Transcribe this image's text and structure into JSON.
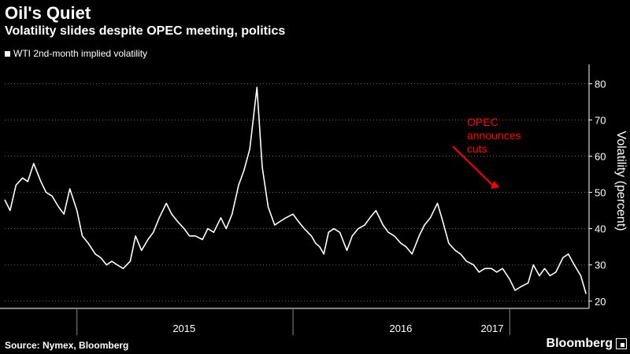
{
  "header": {
    "title": "Oil's Quiet",
    "subtitle": "Volatility slides despite OPEC meeting, politics"
  },
  "legend": {
    "label": "WTI 2nd-month implied volatility"
  },
  "footer": {
    "source": "Source: Nymex, Bloomberg",
    "brand": "Bloomberg"
  },
  "annotation": {
    "lines": [
      "OPEC",
      "announces",
      "cuts"
    ],
    "color": "#ff0000",
    "arrow_to": [
      "2016-11-30",
      51
    ]
  },
  "colors": {
    "background": "#000000",
    "line": "#ffffff",
    "annotation": "#ff0000"
  },
  "chart_data": {
    "type": "line",
    "ylabel": "Volatility (percent)",
    "ylim": [
      18,
      84
    ],
    "yticks": [
      20,
      30,
      40,
      50,
      60,
      70,
      80
    ],
    "xlim": [
      "2014-09-01",
      "2017-05-15"
    ],
    "xticks": [
      {
        "label": "2015",
        "at": "2015-07-01"
      },
      {
        "label": "2016",
        "at": "2016-07-01"
      },
      {
        "label": "2017",
        "at": "2017-07-01"
      }
    ],
    "xboundaries": [
      "2015-01-01",
      "2016-01-01",
      "2017-01-01"
    ],
    "grid": "horizontal-dotted",
    "legend_position": "top-left",
    "series": [
      {
        "name": "WTI 2nd-month implied volatility",
        "x": [
          "2014-09-01",
          "2014-09-10",
          "2014-09-20",
          "2014-10-01",
          "2014-10-10",
          "2014-10-20",
          "2014-11-01",
          "2014-11-10",
          "2014-11-20",
          "2014-12-01",
          "2014-12-10",
          "2014-12-20",
          "2015-01-01",
          "2015-01-10",
          "2015-01-20",
          "2015-02-01",
          "2015-02-10",
          "2015-02-20",
          "2015-03-01",
          "2015-03-10",
          "2015-03-20",
          "2015-04-01",
          "2015-04-10",
          "2015-04-20",
          "2015-05-01",
          "2015-05-10",
          "2015-05-20",
          "2015-06-01",
          "2015-06-10",
          "2015-06-20",
          "2015-07-01",
          "2015-07-10",
          "2015-07-20",
          "2015-08-01",
          "2015-08-10",
          "2015-08-20",
          "2015-09-01",
          "2015-09-10",
          "2015-09-20",
          "2015-10-01",
          "2015-10-10",
          "2015-10-20",
          "2015-11-01",
          "2015-11-10",
          "2015-11-20",
          "2015-12-01",
          "2015-12-10",
          "2015-12-20",
          "2016-01-01",
          "2016-01-10",
          "2016-01-20",
          "2016-02-01",
          "2016-02-08",
          "2016-02-15",
          "2016-02-22",
          "2016-03-01",
          "2016-03-10",
          "2016-03-20",
          "2016-04-01",
          "2016-04-10",
          "2016-04-20",
          "2016-05-01",
          "2016-05-10",
          "2016-05-20",
          "2016-06-01",
          "2016-06-10",
          "2016-06-20",
          "2016-07-01",
          "2016-07-10",
          "2016-07-20",
          "2016-08-01",
          "2016-08-10",
          "2016-08-20",
          "2016-09-01",
          "2016-09-10",
          "2016-09-20",
          "2016-10-01",
          "2016-10-10",
          "2016-10-20",
          "2016-11-01",
          "2016-11-10",
          "2016-11-20",
          "2016-12-01",
          "2016-12-10",
          "2016-12-20",
          "2017-01-01",
          "2017-01-10",
          "2017-01-20",
          "2017-02-01",
          "2017-02-10",
          "2017-02-20",
          "2017-03-01",
          "2017-03-10",
          "2017-03-20",
          "2017-04-01",
          "2017-04-10",
          "2017-04-20",
          "2017-05-01",
          "2017-05-10"
        ],
        "y": [
          48,
          45,
          52,
          54,
          53,
          58,
          53,
          50,
          49,
          46,
          44,
          51,
          45,
          38,
          36,
          33,
          32,
          30,
          31,
          30,
          29,
          31,
          38,
          34,
          37,
          39,
          43,
          47,
          44,
          42,
          40,
          38,
          38,
          37,
          40,
          39,
          43,
          40,
          44,
          52,
          56,
          62,
          79,
          57,
          46,
          41,
          42,
          43,
          44,
          42,
          40,
          38,
          36,
          35,
          33,
          39,
          40,
          39,
          34,
          38,
          40,
          41,
          43,
          45,
          41,
          39,
          38,
          36,
          35,
          33,
          38,
          41,
          43,
          47,
          42,
          36,
          34,
          33,
          31,
          30,
          28,
          29,
          29,
          28,
          29,
          26,
          23,
          24,
          25,
          30,
          27,
          29,
          27,
          28,
          32,
          33,
          30,
          27,
          22
        ]
      }
    ]
  }
}
